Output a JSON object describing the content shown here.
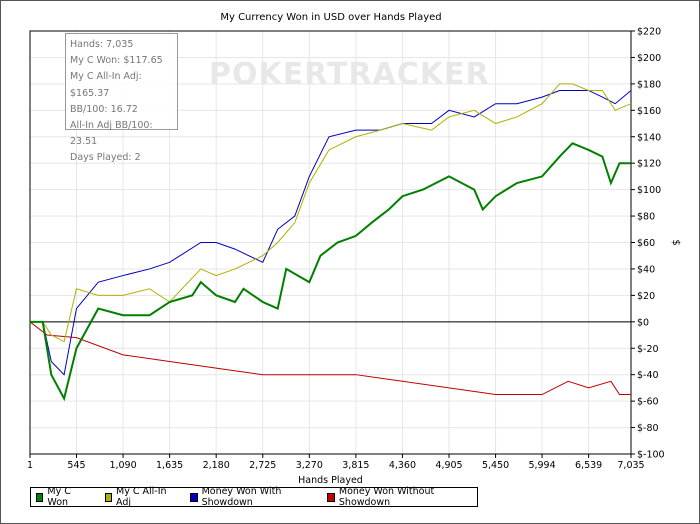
{
  "chart_data": {
    "type": "line",
    "title": "My Currency Won in USD over Hands Played",
    "xlabel": "Hands Played",
    "ylabel": "$",
    "xlim": [
      1,
      7035
    ],
    "ylim": [
      -100,
      220
    ],
    "x_ticks": [
      "1",
      "545",
      "1,090",
      "1,635",
      "2,180",
      "2,725",
      "3,270",
      "3,815",
      "4,360",
      "4,905",
      "5,450",
      "5,994",
      "6,539",
      "7,035"
    ],
    "x_tick_values": [
      1,
      545,
      1090,
      1635,
      2180,
      2725,
      3270,
      3815,
      4360,
      4905,
      5450,
      5994,
      6539,
      7035
    ],
    "y_ticks": [
      "$220",
      "$200",
      "$180",
      "$160",
      "$140",
      "$120",
      "$100",
      "$80",
      "$60",
      "$40",
      "$20",
      "$0",
      "$-20",
      "$-40",
      "$-60",
      "$-80",
      "$-100"
    ],
    "y_tick_values": [
      220,
      200,
      180,
      160,
      140,
      120,
      100,
      80,
      60,
      40,
      20,
      0,
      -20,
      -40,
      -60,
      -80,
      -100
    ],
    "grid": true,
    "legend_position": "bottom",
    "series": [
      {
        "name": "My C Won",
        "color": "#008000",
        "points": [
          [
            1,
            0
          ],
          [
            150,
            0
          ],
          [
            250,
            -40
          ],
          [
            400,
            -58
          ],
          [
            545,
            -20
          ],
          [
            800,
            10
          ],
          [
            1090,
            5
          ],
          [
            1400,
            5
          ],
          [
            1635,
            15
          ],
          [
            1900,
            20
          ],
          [
            2000,
            30
          ],
          [
            2180,
            20
          ],
          [
            2400,
            15
          ],
          [
            2500,
            25
          ],
          [
            2725,
            15
          ],
          [
            2900,
            10
          ],
          [
            3000,
            40
          ],
          [
            3270,
            30
          ],
          [
            3400,
            50
          ],
          [
            3600,
            60
          ],
          [
            3815,
            65
          ],
          [
            4000,
            75
          ],
          [
            4200,
            85
          ],
          [
            4360,
            95
          ],
          [
            4600,
            100
          ],
          [
            4905,
            110
          ],
          [
            5200,
            100
          ],
          [
            5300,
            85
          ],
          [
            5450,
            95
          ],
          [
            5700,
            105
          ],
          [
            5994,
            110
          ],
          [
            6200,
            125
          ],
          [
            6350,
            135
          ],
          [
            6539,
            130
          ],
          [
            6700,
            125
          ],
          [
            6800,
            105
          ],
          [
            6900,
            120
          ],
          [
            7035,
            120
          ]
        ]
      },
      {
        "name": "My C All-In Adj",
        "color": "#b0b000",
        "points": [
          [
            1,
            0
          ],
          [
            150,
            0
          ],
          [
            250,
            -10
          ],
          [
            400,
            -15
          ],
          [
            545,
            25
          ],
          [
            800,
            20
          ],
          [
            1090,
            20
          ],
          [
            1400,
            25
          ],
          [
            1635,
            15
          ],
          [
            2000,
            40
          ],
          [
            2180,
            35
          ],
          [
            2400,
            40
          ],
          [
            2725,
            50
          ],
          [
            2900,
            60
          ],
          [
            3100,
            75
          ],
          [
            3270,
            105
          ],
          [
            3500,
            130
          ],
          [
            3815,
            140
          ],
          [
            4100,
            145
          ],
          [
            4360,
            150
          ],
          [
            4700,
            145
          ],
          [
            4905,
            155
          ],
          [
            5200,
            160
          ],
          [
            5450,
            150
          ],
          [
            5700,
            155
          ],
          [
            5994,
            165
          ],
          [
            6200,
            180
          ],
          [
            6350,
            180
          ],
          [
            6539,
            175
          ],
          [
            6700,
            175
          ],
          [
            6850,
            160
          ],
          [
            7035,
            165
          ]
        ]
      },
      {
        "name": "Money Won With Showdown",
        "color": "#0000c0",
        "points": [
          [
            1,
            0
          ],
          [
            150,
            0
          ],
          [
            250,
            -30
          ],
          [
            400,
            -40
          ],
          [
            545,
            10
          ],
          [
            800,
            30
          ],
          [
            1090,
            35
          ],
          [
            1400,
            40
          ],
          [
            1635,
            45
          ],
          [
            2000,
            60
          ],
          [
            2180,
            60
          ],
          [
            2400,
            55
          ],
          [
            2725,
            45
          ],
          [
            2900,
            70
          ],
          [
            3100,
            80
          ],
          [
            3270,
            110
          ],
          [
            3500,
            140
          ],
          [
            3815,
            145
          ],
          [
            4100,
            145
          ],
          [
            4360,
            150
          ],
          [
            4700,
            150
          ],
          [
            4905,
            160
          ],
          [
            5200,
            155
          ],
          [
            5450,
            165
          ],
          [
            5700,
            165
          ],
          [
            5994,
            170
          ],
          [
            6200,
            175
          ],
          [
            6539,
            175
          ],
          [
            6700,
            170
          ],
          [
            6850,
            165
          ],
          [
            7035,
            175
          ]
        ]
      },
      {
        "name": "Money Won Without Showdown",
        "color": "#c00000",
        "points": [
          [
            1,
            0
          ],
          [
            200,
            -10
          ],
          [
            545,
            -12
          ],
          [
            1090,
            -25
          ],
          [
            1635,
            -30
          ],
          [
            2180,
            -35
          ],
          [
            2725,
            -40
          ],
          [
            3270,
            -40
          ],
          [
            3815,
            -40
          ],
          [
            4360,
            -45
          ],
          [
            4905,
            -50
          ],
          [
            5450,
            -55
          ],
          [
            5994,
            -55
          ],
          [
            6300,
            -45
          ],
          [
            6539,
            -50
          ],
          [
            6800,
            -45
          ],
          [
            6900,
            -55
          ],
          [
            7035,
            -55
          ]
        ]
      }
    ]
  },
  "watermark": "POKERTRACKER",
  "tooltip": {
    "lines": [
      "Hands: 7,035",
      "My C Won: $117.65",
      "My C All-In Adj: $165.37",
      "BB/100: 16.72",
      "All-In Adj BB/100: 23.51",
      "Days Played: 2"
    ]
  }
}
